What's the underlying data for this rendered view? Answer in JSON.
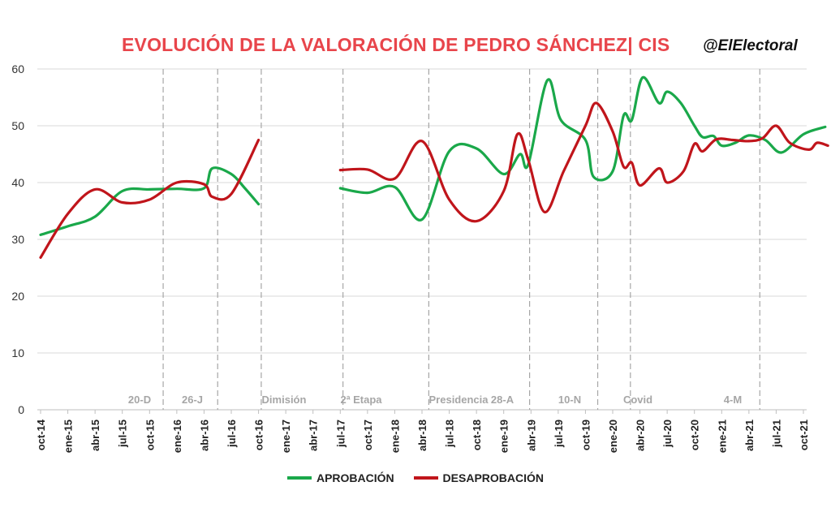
{
  "title": "EVOLUCIÓN DE LA VALORACIÓN DE PEDRO SÁNCHEZ| CIS",
  "handle": "@ElElectoral",
  "chart_data": {
    "type": "line",
    "title": "EVOLUCIÓN DE LA VALORACIÓN DE PEDRO SÁNCHEZ| CIS",
    "ylim": [
      0,
      60
    ],
    "yticks": [
      0,
      10,
      20,
      30,
      40,
      50,
      60
    ],
    "grid": true,
    "legend_position": "bottom",
    "categories": [
      "oct-14",
      "ene-15",
      "abr-15",
      "jul-15",
      "oct-15",
      "ene-16",
      "abr-16",
      "jul-16",
      "oct-16",
      "ene-17",
      "abr-17",
      "jul-17",
      "oct-17",
      "ene-18",
      "abr-18",
      "jul-18",
      "oct-18",
      "ene-19",
      "abr-19",
      "jul-19",
      "oct-19",
      "ene-20",
      "abr-20",
      "jul-20",
      "oct-20",
      "ene-21",
      "abr-21",
      "jul-21",
      "oct-21"
    ],
    "events": [
      {
        "label": "20-D",
        "pos": 4.5
      },
      {
        "label": "26-J",
        "pos": 6.5
      },
      {
        "label": "Dimisión",
        "pos": 8.1
      },
      {
        "label": "2ª Etapa",
        "pos": 11.1
      },
      {
        "label": "Presidencia",
        "pos": 14.25
      },
      {
        "label": "28-A",
        "pos": 17.95
      },
      {
        "label": "10-N",
        "pos": 20.45
      },
      {
        "label": "Covid",
        "pos": 21.65
      },
      {
        "label": "4-M",
        "pos": 26.4
      }
    ],
    "series": [
      {
        "name": "APROBACIÓN",
        "color": "#1aa84a",
        "segments": [
          [
            [
              0,
              30.8
            ],
            [
              1,
              32.3
            ],
            [
              2,
              34
            ],
            [
              3,
              38.5
            ],
            [
              4,
              38.8
            ],
            [
              5,
              38.9
            ],
            [
              6,
              39
            ],
            [
              6.3,
              42.5
            ],
            [
              7,
              41.5
            ],
            [
              7.5,
              39
            ],
            [
              8,
              36.2
            ]
          ],
          [
            [
              11,
              39
            ],
            [
              12,
              38.2
            ],
            [
              13,
              39.2
            ],
            [
              14,
              33.5
            ],
            [
              15,
              45.5
            ],
            [
              16,
              46
            ],
            [
              17,
              41.5
            ],
            [
              17.6,
              45
            ],
            [
              17.9,
              43.2
            ],
            [
              18.6,
              58
            ],
            [
              19.1,
              51
            ],
            [
              20,
              47.5
            ],
            [
              20.3,
              41
            ],
            [
              21,
              42
            ],
            [
              21.4,
              51.8
            ],
            [
              21.7,
              51
            ],
            [
              22.1,
              58.5
            ],
            [
              22.7,
              54
            ],
            [
              23,
              56
            ],
            [
              23.5,
              54
            ],
            [
              24,
              50
            ],
            [
              24.3,
              48
            ],
            [
              24.7,
              48.2
            ],
            [
              25,
              46.5
            ],
            [
              25.5,
              47
            ],
            [
              26,
              48.3
            ],
            [
              26.6,
              47.5
            ],
            [
              27.2,
              45.3
            ],
            [
              28,
              48.5
            ],
            [
              28.8,
              49.8
            ]
          ]
        ]
      },
      {
        "name": "DESAPROBACIÓN",
        "color": "#c0151b",
        "segments": [
          [
            [
              0,
              26.8
            ],
            [
              1,
              34.5
            ],
            [
              2,
              38.8
            ],
            [
              3,
              36.5
            ],
            [
              4,
              37
            ],
            [
              5,
              40
            ],
            [
              6,
              39.7
            ],
            [
              6.3,
              37.5
            ],
            [
              7,
              38
            ],
            [
              8,
              47.5
            ]
          ],
          [
            [
              11,
              42.2
            ],
            [
              12,
              42.3
            ],
            [
              13,
              40.7
            ],
            [
              14,
              47.3
            ],
            [
              15,
              37
            ],
            [
              16,
              33.2
            ],
            [
              17,
              38.5
            ],
            [
              17.5,
              48.5
            ],
            [
              17.9,
              44
            ],
            [
              18.5,
              34.8
            ],
            [
              19.2,
              42
            ],
            [
              20,
              50
            ],
            [
              20.4,
              54
            ],
            [
              21,
              49
            ],
            [
              21.4,
              42.8
            ],
            [
              21.7,
              43.5
            ],
            [
              22,
              39.5
            ],
            [
              22.7,
              42.5
            ],
            [
              23,
              40
            ],
            [
              23.6,
              42
            ],
            [
              24,
              46.8
            ],
            [
              24.3,
              45.5
            ],
            [
              24.8,
              47.6
            ],
            [
              25.4,
              47.5
            ],
            [
              26,
              47.3
            ],
            [
              26.5,
              47.8
            ],
            [
              27,
              50
            ],
            [
              27.5,
              47
            ],
            [
              28.2,
              45.8
            ],
            [
              28.5,
              47
            ],
            [
              28.9,
              46.5
            ]
          ]
        ]
      }
    ]
  }
}
